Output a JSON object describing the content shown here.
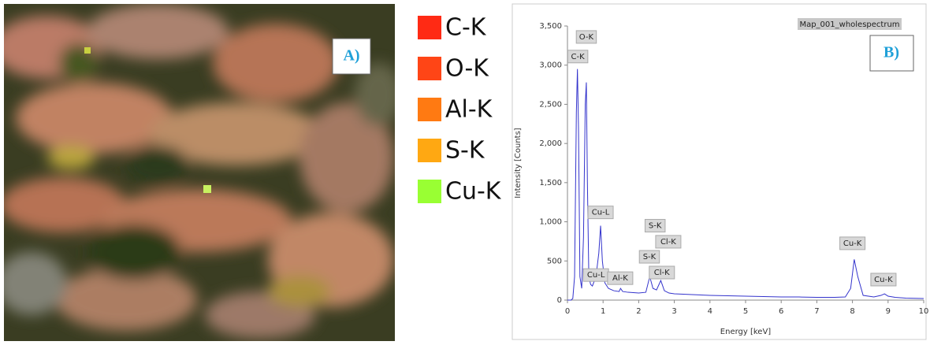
{
  "map": {
    "label": "A)",
    "legend": [
      {
        "name": "C-K",
        "color": "#ff2a14"
      },
      {
        "name": "O-K",
        "color": "#ff4516"
      },
      {
        "name": "Al-K",
        "color": "#ff7a12"
      },
      {
        "name": "S-K",
        "color": "#ffa812"
      },
      {
        "name": "Cu-K",
        "color": "#99ff33"
      }
    ]
  },
  "chart_data": {
    "type": "line",
    "title": "Map_001_wholespectrum",
    "label": "B)",
    "x_label": "Energy [keV]",
    "y_label": "Intensity [Counts]",
    "xlim": [
      0,
      10
    ],
    "xticks": [
      0,
      1,
      2,
      3,
      4,
      5,
      6,
      7,
      8,
      9,
      10
    ],
    "ylim": [
      0,
      3500
    ],
    "yticks": [
      0,
      500,
      {
        "value": 1000,
        "label": "1,000"
      },
      {
        "value": 1500,
        "label": "1,500"
      },
      {
        "value": 2000,
        "label": "2,000"
      },
      {
        "value": 2500,
        "label": "2,500"
      },
      {
        "value": 3000,
        "label": "3,000"
      },
      {
        "value": 3500,
        "label": "3,500"
      }
    ],
    "series": [
      {
        "color": "#3333cc",
        "x": [
          0,
          0.1,
          0.15,
          0.2,
          0.25,
          0.28,
          0.31,
          0.35,
          0.4,
          0.45,
          0.5,
          0.53,
          0.56,
          0.6,
          0.65,
          0.7,
          0.8,
          0.88,
          0.93,
          0.98,
          1.05,
          1.15,
          1.3,
          1.45,
          1.49,
          1.55,
          1.7,
          2.0,
          2.2,
          2.31,
          2.4,
          2.5,
          2.62,
          2.72,
          2.85,
          3.0,
          3.5,
          4,
          4.5,
          5,
          5.5,
          6,
          6.5,
          7,
          7.5,
          7.8,
          7.95,
          8.05,
          8.15,
          8.3,
          8.6,
          8.8,
          8.9,
          9.0,
          9.2,
          9.5,
          10
        ],
        "values": [
          0,
          0,
          20,
          300,
          2400,
          2950,
          2200,
          300,
          150,
          800,
          2500,
          2780,
          1500,
          300,
          200,
          180,
          300,
          600,
          950,
          500,
          220,
          150,
          120,
          110,
          150,
          110,
          100,
          90,
          100,
          300,
          150,
          130,
          250,
          120,
          90,
          80,
          70,
          60,
          55,
          50,
          45,
          40,
          40,
          35,
          35,
          40,
          150,
          520,
          300,
          60,
          40,
          60,
          80,
          50,
          35,
          25,
          20
        ]
      }
    ],
    "annotations": [
      {
        "text": "O-K",
        "x": 0.53,
        "y": 3360
      },
      {
        "text": "C-K",
        "x": 0.29,
        "y": 3110
      },
      {
        "text": "Cu-L",
        "x": 0.93,
        "y": 1120
      },
      {
        "text": "Cu-L",
        "x": 0.8,
        "y": 320
      },
      {
        "text": "Al-K",
        "x": 1.48,
        "y": 280
      },
      {
        "text": "S-K",
        "x": 2.46,
        "y": 950
      },
      {
        "text": "Cl-K",
        "x": 2.83,
        "y": 745
      },
      {
        "text": "S-K",
        "x": 2.3,
        "y": 553
      },
      {
        "text": "Cl-K",
        "x": 2.65,
        "y": 352
      },
      {
        "text": "Cu-K",
        "x": 8.0,
        "y": 725
      },
      {
        "text": "Cu-K",
        "x": 8.87,
        "y": 262
      }
    ]
  }
}
